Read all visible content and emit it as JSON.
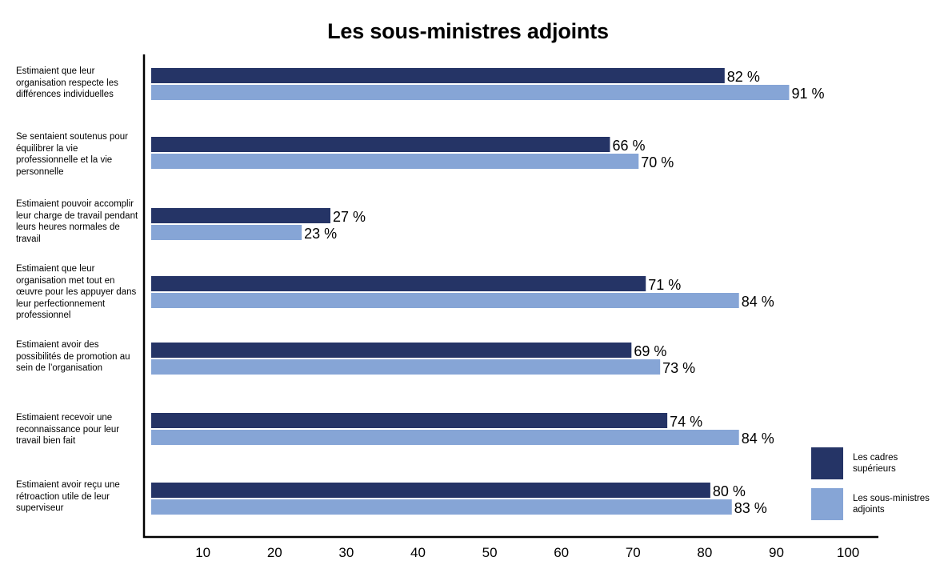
{
  "chart_data": {
    "type": "bar",
    "orientation": "horizontal",
    "title": "Les sous-ministres adjoints",
    "categories": [
      "Estimaient que leur organisation respecte les différences individuelles",
      "Se sentaient soutenus pour équilibrer la vie professionnelle et la vie personnelle",
      "Estimaient pouvoir accomplir leur charge de travail pendant leurs heures normales de travail",
      "Estimaient que leur organisation met tout en œuvre pour les appuyer dans leur perfectionnement professionnel",
      "Estimaient avoir des possibilités de promotion au sein de l’organisation",
      "Estimaient recevoir une reconnaissance pour leur travail bien fait",
      "Estimaient avoir reçu une rétroaction utile de leur superviseur"
    ],
    "series": [
      {
        "name": "Les cadres supérieurs",
        "color": "#253466",
        "values": [
          82,
          66,
          27,
          71,
          69,
          74,
          80
        ],
        "labels": [
          "82 %",
          "66 %",
          "27 %",
          "71 %",
          "69 %",
          "74 %",
          "80 %"
        ]
      },
      {
        "name": "Les sous-ministres adjoints",
        "color": "#86a5d6",
        "values": [
          91,
          70,
          23,
          84,
          73,
          84,
          83
        ],
        "labels": [
          "91 %",
          "70 %",
          "23 %",
          "84 %",
          "73 %",
          "84 %",
          "83 %"
        ]
      }
    ],
    "x_ticks": [
      "10",
      "20",
      "30",
      "40",
      "50",
      "60",
      "70",
      "80",
      "90",
      "100"
    ],
    "xlim": [
      2,
      100
    ],
    "grid": false,
    "legend_position": "bottom-right"
  }
}
